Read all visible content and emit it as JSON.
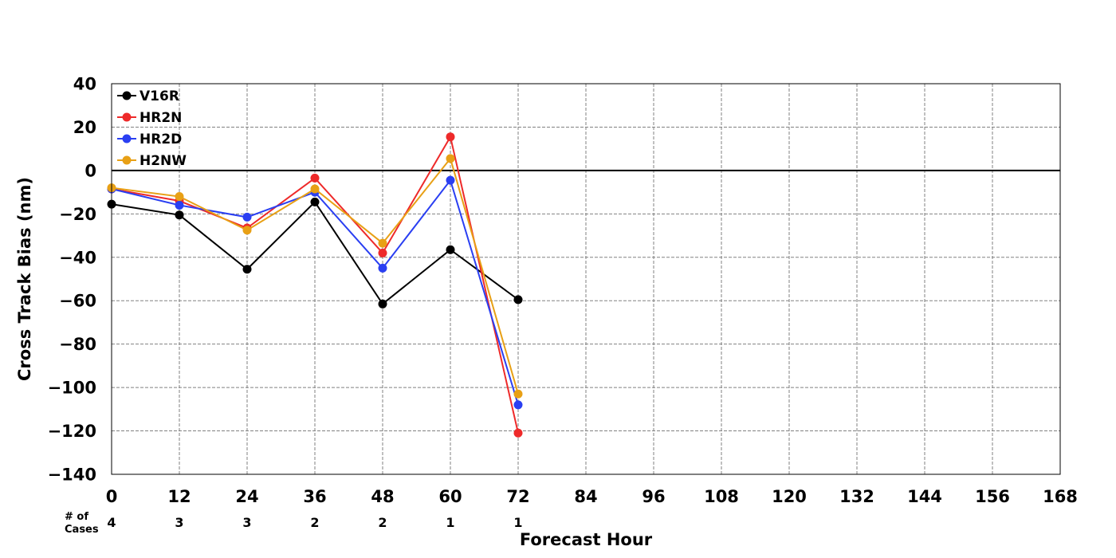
{
  "chart_data": {
    "type": "line",
    "title": "",
    "xlabel": "Forecast Hour",
    "ylabel": "Cross Track Bias (nm)",
    "xlim": [
      0,
      168
    ],
    "ylim": [
      -140,
      40
    ],
    "x_ticks": [
      0,
      12,
      24,
      36,
      48,
      60,
      72,
      84,
      96,
      108,
      120,
      132,
      144,
      156,
      168
    ],
    "y_ticks": [
      40,
      20,
      0,
      -20,
      -40,
      -60,
      -80,
      -100,
      -120,
      -140
    ],
    "y_tick_labels": [
      "40",
      "20",
      "0",
      "−20",
      "−40",
      "−60",
      "−80",
      "−100",
      "−120",
      "−140"
    ],
    "grid": true,
    "zero_line": true,
    "legend_position": "top-left",
    "x": [
      0,
      12,
      24,
      36,
      48,
      60,
      72
    ],
    "series": [
      {
        "name": "V16R",
        "color": "#000000",
        "values": [
          -15.5,
          -20.5,
          -45.5,
          -14.5,
          -61.5,
          -36.5,
          -59.5
        ]
      },
      {
        "name": "HR2N",
        "color": "#ee2a2a",
        "values": [
          -8.5,
          -14,
          -26.5,
          -3.5,
          -38,
          15.5,
          -121
        ]
      },
      {
        "name": "HR2D",
        "color": "#2a3ff2",
        "values": [
          -8.5,
          -16,
          -21.5,
          -10,
          -45,
          -4.5,
          -108
        ]
      },
      {
        "name": "H2NW",
        "color": "#e8a015",
        "values": [
          -8,
          -12,
          -27.5,
          -8.5,
          -33.5,
          5.5,
          -103
        ]
      }
    ],
    "cases_header": "# of Cases",
    "cases_header_lines": [
      "# of",
      "Cases"
    ],
    "cases": [
      "4",
      "3",
      "3",
      "2",
      "2",
      "1",
      "1"
    ]
  }
}
